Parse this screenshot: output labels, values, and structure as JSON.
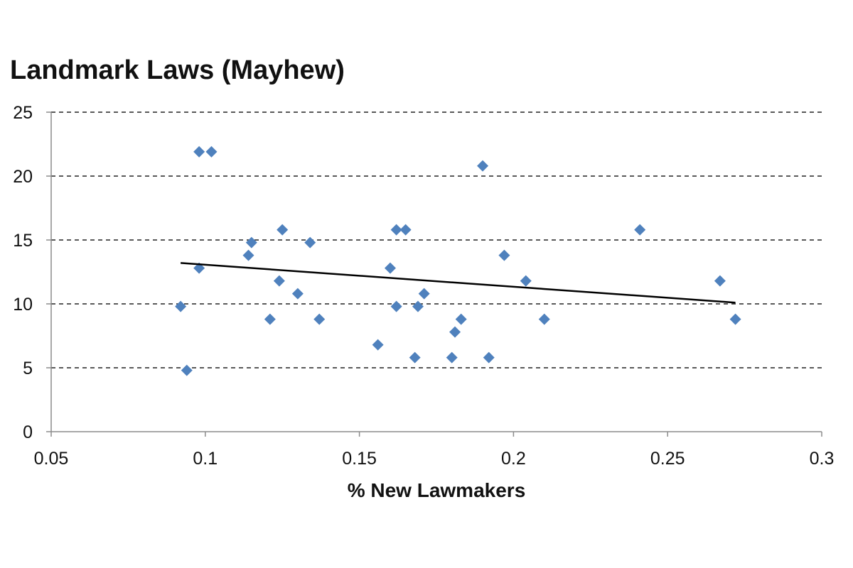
{
  "chart_data": {
    "type": "scatter",
    "title": "Landmark Laws (Mayhew)",
    "xlabel": "% New Lawmakers",
    "ylabel": "",
    "xlim": [
      0.05,
      0.3
    ],
    "ylim": [
      0,
      25
    ],
    "x_ticks": [
      "0.05",
      "0.1",
      "0.15",
      "0.2",
      "0.25",
      "0.3"
    ],
    "y_ticks": [
      "0",
      "5",
      "10",
      "15",
      "20",
      "25"
    ],
    "grid": "horizontal dashed",
    "legend": "none",
    "marker": "diamond",
    "marker_color": "#4f81bd",
    "trendline_color": "#000000",
    "series": [
      {
        "points": [
          {
            "x": 0.092,
            "y": 9.8
          },
          {
            "x": 0.094,
            "y": 4.8
          },
          {
            "x": 0.098,
            "y": 12.8
          },
          {
            "x": 0.098,
            "y": 21.9
          },
          {
            "x": 0.102,
            "y": 21.9
          },
          {
            "x": 0.114,
            "y": 13.8
          },
          {
            "x": 0.115,
            "y": 14.8
          },
          {
            "x": 0.121,
            "y": 8.8
          },
          {
            "x": 0.124,
            "y": 11.8
          },
          {
            "x": 0.125,
            "y": 15.8
          },
          {
            "x": 0.13,
            "y": 10.8
          },
          {
            "x": 0.134,
            "y": 14.8
          },
          {
            "x": 0.137,
            "y": 8.8
          },
          {
            "x": 0.156,
            "y": 6.8
          },
          {
            "x": 0.16,
            "y": 12.8
          },
          {
            "x": 0.162,
            "y": 15.8
          },
          {
            "x": 0.162,
            "y": 9.8
          },
          {
            "x": 0.165,
            "y": 15.8
          },
          {
            "x": 0.168,
            "y": 5.8
          },
          {
            "x": 0.169,
            "y": 9.8
          },
          {
            "x": 0.171,
            "y": 10.8
          },
          {
            "x": 0.18,
            "y": 5.8
          },
          {
            "x": 0.181,
            "y": 7.8
          },
          {
            "x": 0.183,
            "y": 8.8
          },
          {
            "x": 0.19,
            "y": 20.8
          },
          {
            "x": 0.192,
            "y": 5.8
          },
          {
            "x": 0.197,
            "y": 13.8
          },
          {
            "x": 0.204,
            "y": 11.8
          },
          {
            "x": 0.21,
            "y": 8.8
          },
          {
            "x": 0.241,
            "y": 15.8
          },
          {
            "x": 0.267,
            "y": 11.8
          },
          {
            "x": 0.272,
            "y": 8.8
          }
        ]
      }
    ],
    "trendline": {
      "x": [
        0.092,
        0.272
      ],
      "y": [
        13.2,
        10.1
      ]
    }
  }
}
